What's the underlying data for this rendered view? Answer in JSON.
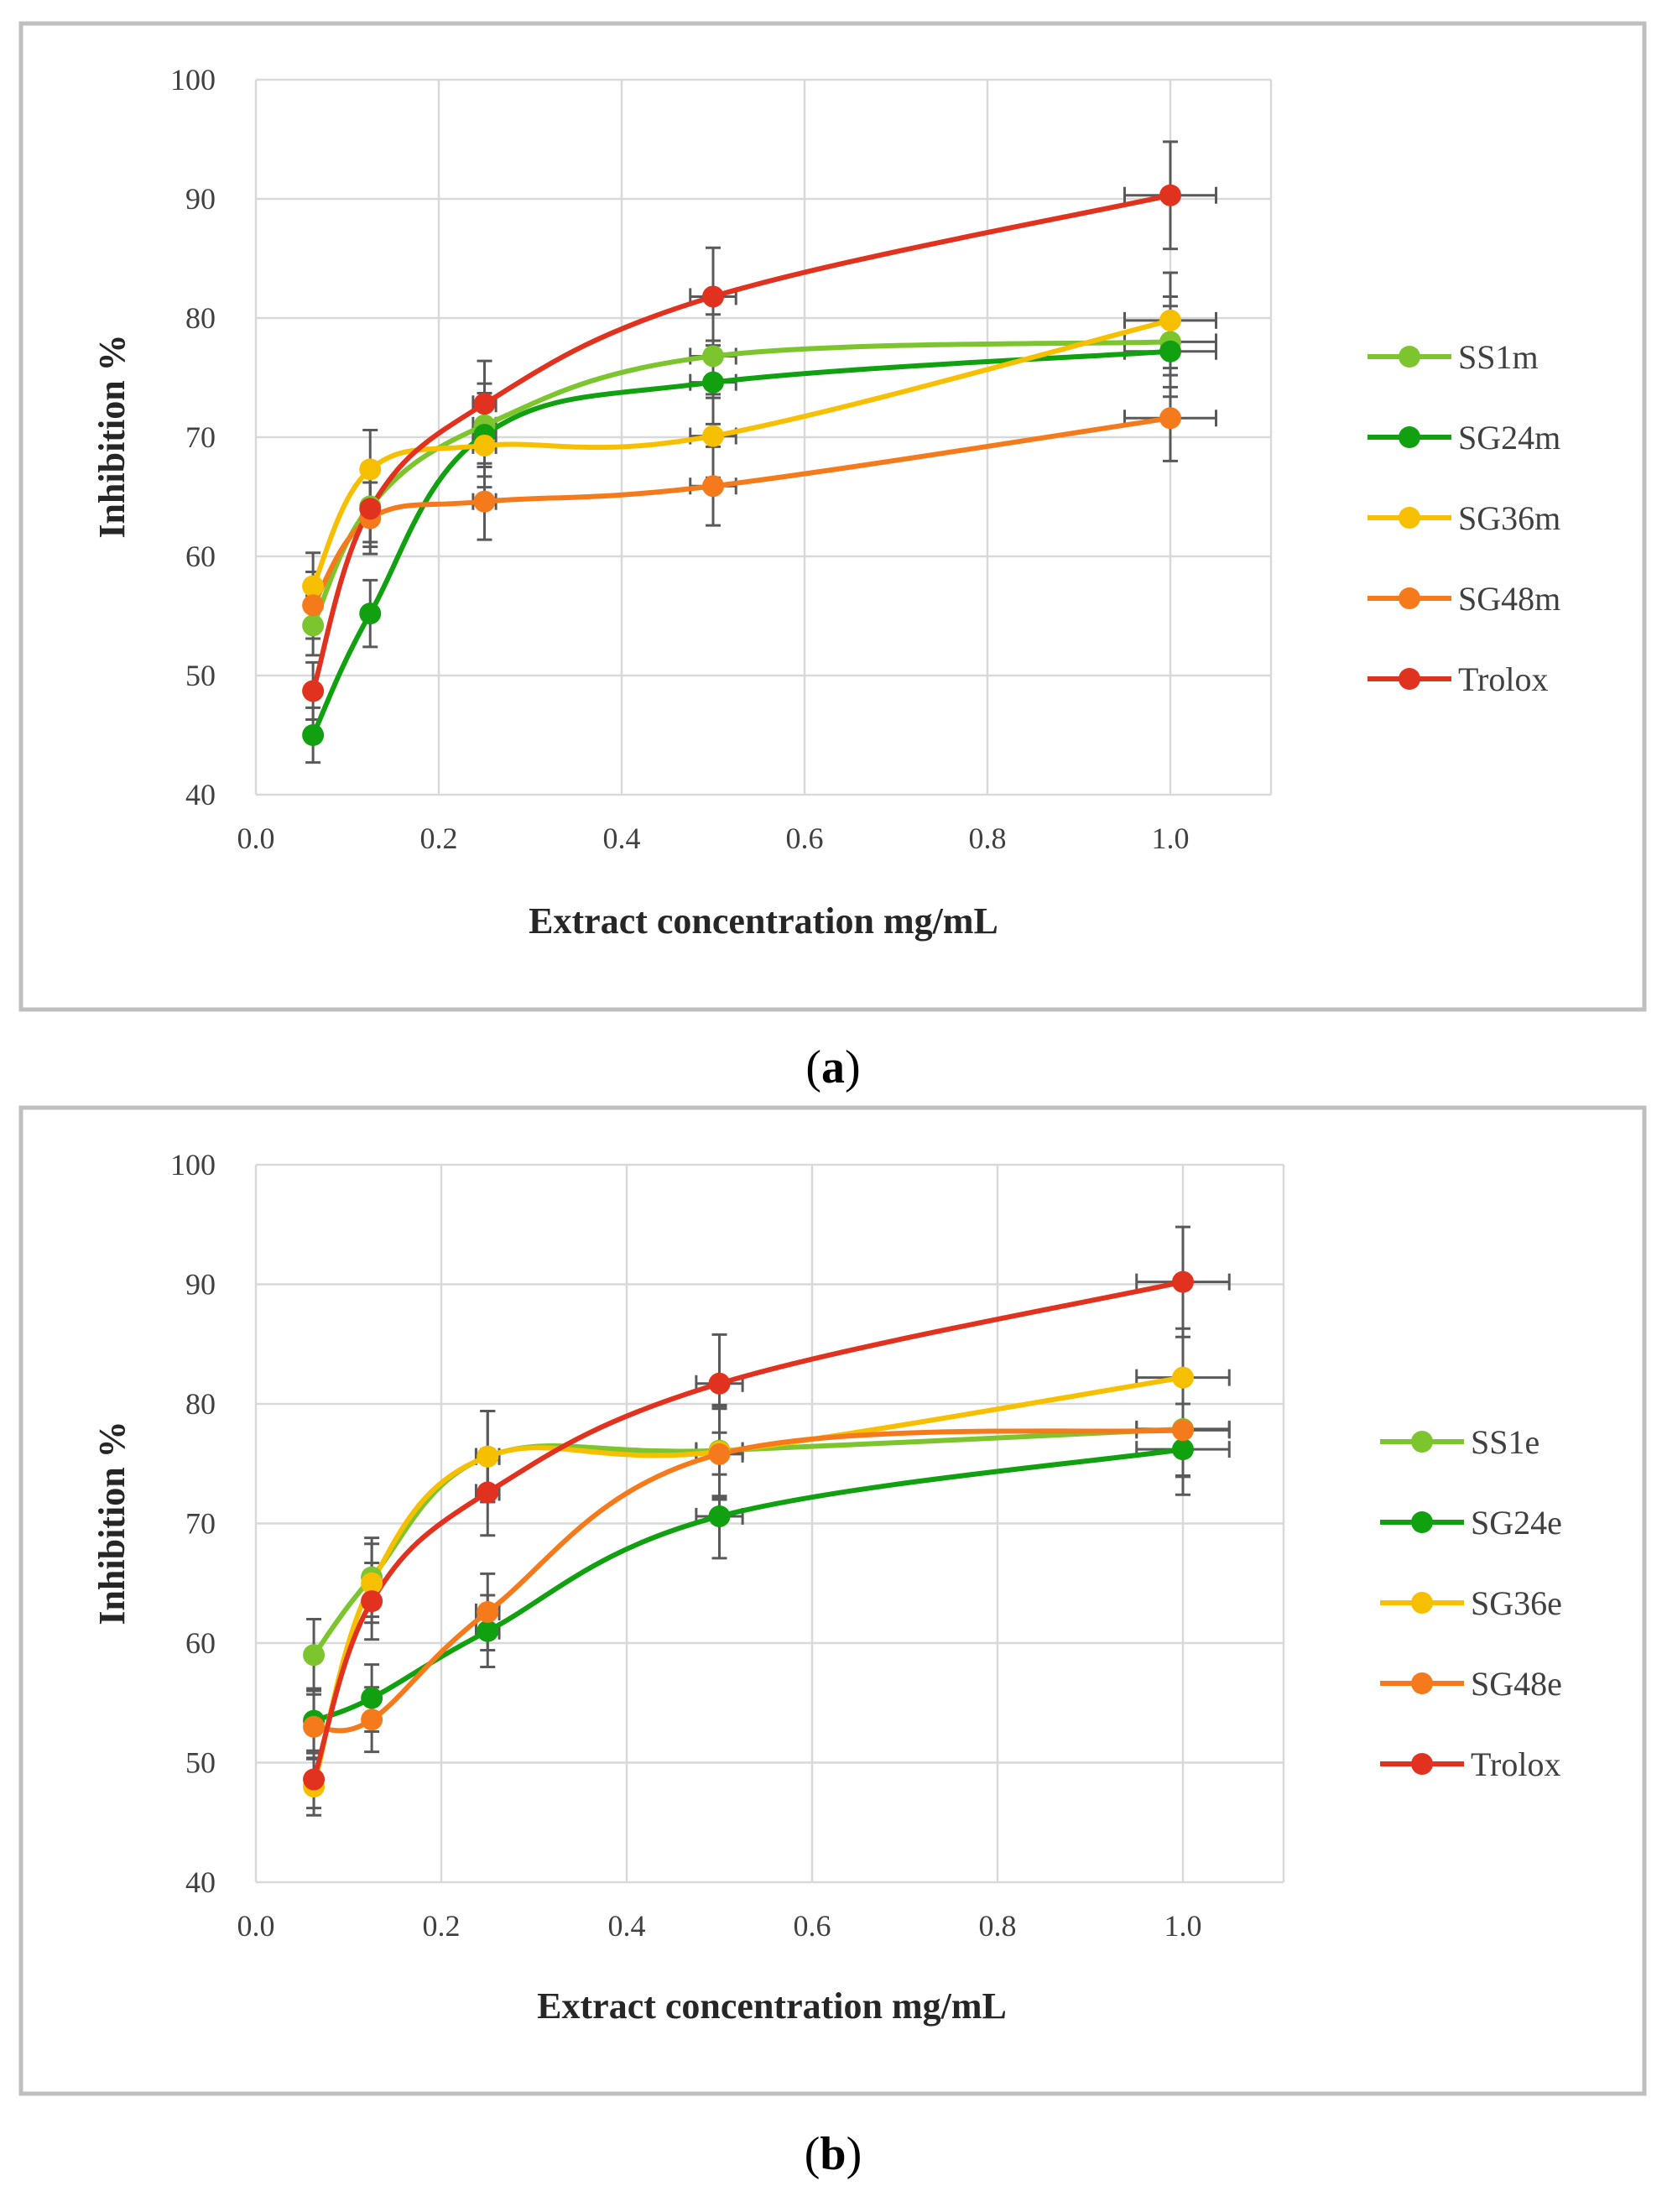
{
  "colors": {
    "SS1": "#7dc52f",
    "SG24": "#10a010",
    "SG36": "#f6c000",
    "SG48": "#f57a1c",
    "Trolox": "#e0321e",
    "error_bar": "#595959",
    "grid": "#d9d9d9",
    "frame": "#bfbfbf"
  },
  "chart_data": [
    {
      "panel_label": "(a)",
      "caption_letter": "a",
      "type": "line",
      "xlabel": "Extract concentration mg/mL",
      "ylabel": "Inhibition %",
      "xlim": [
        0.0,
        1.0
      ],
      "ylim": [
        40,
        100
      ],
      "xticks": [
        "0.0",
        "0.2",
        "0.4",
        "0.6",
        "0.8",
        "1.0"
      ],
      "yticks": [
        "40",
        "50",
        "60",
        "70",
        "80",
        "90",
        "100"
      ],
      "grid": true,
      "legend_position": "right",
      "x": [
        0.0625,
        0.125,
        0.25,
        0.5,
        1.0
      ],
      "series": [
        {
          "name": "SS1m",
          "color_key": "SS1",
          "values": [
            54.2,
            64.2,
            71.0,
            76.8,
            78.0
          ],
          "errors": [
            2.5,
            3.0,
            3.5,
            3.5,
            3.8
          ]
        },
        {
          "name": "SG24m",
          "color_key": "SG24",
          "values": [
            45.0,
            55.2,
            70.2,
            74.6,
            77.2
          ],
          "errors": [
            2.3,
            2.8,
            3.5,
            3.5,
            3.8
          ]
        },
        {
          "name": "SG36m",
          "color_key": "SG36",
          "values": [
            57.5,
            67.3,
            69.3,
            70.1,
            79.8
          ],
          "errors": [
            2.8,
            3.3,
            3.5,
            3.5,
            4.0
          ]
        },
        {
          "name": "SG48m",
          "color_key": "SG48",
          "values": [
            55.9,
            63.2,
            64.6,
            65.9,
            71.6
          ],
          "errors": [
            2.8,
            3.0,
            3.2,
            3.3,
            3.6
          ]
        },
        {
          "name": "Trolox",
          "color_key": "Trolox",
          "values": [
            48.7,
            64.0,
            72.8,
            81.8,
            90.3
          ],
          "errors": [
            2.4,
            3.2,
            3.6,
            4.1,
            4.5
          ]
        }
      ]
    },
    {
      "panel_label": "(b)",
      "caption_letter": "b",
      "type": "line",
      "xlabel": "Extract concentration mg/mL",
      "ylabel": "Inhibition %",
      "xlim": [
        0.0,
        1.0
      ],
      "ylim": [
        40,
        100
      ],
      "xticks": [
        "0.0",
        "0.2",
        "0.4",
        "0.6",
        "0.8",
        "1.0"
      ],
      "yticks": [
        "40",
        "50",
        "60",
        "70",
        "80",
        "90",
        "100"
      ],
      "grid": true,
      "legend_position": "right",
      "x": [
        0.0625,
        0.125,
        0.25,
        0.5,
        1.0
      ],
      "series": [
        {
          "name": "SS1e",
          "color_key": "SS1",
          "values": [
            59.0,
            65.5,
            75.6,
            76.1,
            77.9
          ],
          "errors": [
            3.0,
            3.3,
            3.8,
            3.8,
            3.9
          ]
        },
        {
          "name": "SG24e",
          "color_key": "SG24",
          "values": [
            53.5,
            55.4,
            61.0,
            70.6,
            76.2
          ],
          "errors": [
            2.7,
            2.8,
            3.0,
            3.5,
            3.8
          ]
        },
        {
          "name": "SG36e",
          "color_key": "SG36",
          "values": [
            48.0,
            65.0,
            75.6,
            76.0,
            82.2
          ],
          "errors": [
            2.4,
            3.3,
            3.8,
            3.8,
            4.1
          ]
        },
        {
          "name": "SG48e",
          "color_key": "SG48",
          "values": [
            53.0,
            53.6,
            62.6,
            75.8,
            77.8
          ],
          "errors": [
            2.7,
            2.7,
            3.2,
            3.8,
            3.9
          ]
        },
        {
          "name": "Trolox",
          "color_key": "Trolox",
          "values": [
            48.6,
            63.5,
            72.6,
            81.7,
            90.2
          ],
          "errors": [
            2.4,
            3.2,
            3.6,
            4.1,
            4.6
          ]
        }
      ]
    }
  ]
}
